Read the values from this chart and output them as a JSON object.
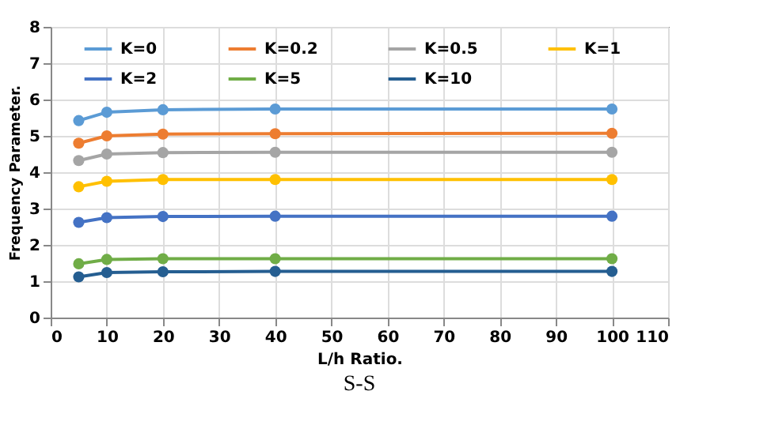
{
  "chart_data": {
    "type": "line",
    "xlabel": "L/h Ratio.",
    "ylabel": "Frequency Parameter.",
    "annotations": [
      "S-S"
    ],
    "x": [
      5,
      10,
      20,
      40,
      100
    ],
    "series": [
      {
        "name": "K=0",
        "color": "#5b9bd5",
        "values": [
          5.42,
          5.65,
          5.72,
          5.74,
          5.74
        ]
      },
      {
        "name": "K=0.2",
        "color": "#ed7d31",
        "values": [
          4.8,
          5.0,
          5.05,
          5.06,
          5.07
        ]
      },
      {
        "name": "K=0.5",
        "color": "#a5a5a5",
        "values": [
          4.32,
          4.5,
          4.54,
          4.55,
          4.55
        ]
      },
      {
        "name": "K=1",
        "color": "#ffc000",
        "values": [
          3.6,
          3.75,
          3.8,
          3.8,
          3.8
        ]
      },
      {
        "name": "K=2",
        "color": "#4472c4",
        "values": [
          2.62,
          2.75,
          2.78,
          2.79,
          2.79
        ]
      },
      {
        "name": "K=5",
        "color": "#70ad47",
        "values": [
          1.48,
          1.6,
          1.62,
          1.62,
          1.62
        ]
      },
      {
        "name": "K=10",
        "color": "#255e91",
        "values": [
          1.12,
          1.24,
          1.26,
          1.27,
          1.27
        ]
      }
    ],
    "xlim": [
      0,
      110
    ],
    "xticks": [
      0,
      10,
      20,
      30,
      40,
      50,
      60,
      70,
      80,
      90,
      100,
      110
    ],
    "ylim": [
      0,
      8
    ],
    "yticks": [
      0,
      1,
      2,
      3,
      4,
      5,
      6,
      7,
      8
    ],
    "grid": true,
    "legend": "top",
    "marker": "circle",
    "line_style": "solid"
  }
}
